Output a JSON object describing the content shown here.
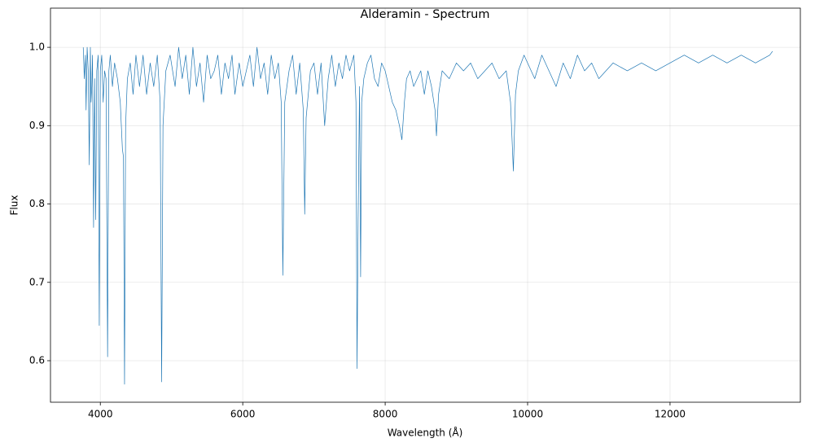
{
  "chart_data": {
    "type": "line",
    "title": "Alderamin - Spectrum",
    "x_label": "Wavelength (Å)",
    "y_label": "Flux",
    "xlim": [
      3300,
      13830
    ],
    "ylim": [
      0.547,
      1.05
    ],
    "xticks": [
      4000,
      6000,
      8000,
      10000,
      12000
    ],
    "yticks": [
      0.6,
      0.7,
      0.8,
      0.9,
      {
        "value": 1.0,
        "label": "1.0"
      }
    ],
    "grid": true,
    "series": [
      {
        "name": "Spectrum",
        "color": "#1f77b4",
        "x": [
          3760,
          3775,
          3790,
          3800,
          3815,
          3830,
          3845,
          3860,
          3870,
          3880,
          3890,
          3905,
          3920,
          3935,
          3950,
          3970,
          3985,
          4000,
          4020,
          4040,
          4060,
          4080,
          4102,
          4120,
          4140,
          4170,
          4200,
          4240,
          4280,
          4310,
          4325,
          4340,
          4355,
          4380,
          4420,
          4460,
          4500,
          4550,
          4600,
          4650,
          4700,
          4750,
          4800,
          4840,
          4861,
          4880,
          4920,
          4980,
          5050,
          5100,
          5150,
          5200,
          5250,
          5300,
          5350,
          5400,
          5450,
          5500,
          5550,
          5600,
          5650,
          5700,
          5750,
          5800,
          5850,
          5890,
          5950,
          6000,
          6050,
          6100,
          6150,
          6200,
          6250,
          6300,
          6350,
          6400,
          6450,
          6500,
          6540,
          6563,
          6590,
          6650,
          6700,
          6750,
          6800,
          6850,
          6870,
          6890,
          6950,
          7000,
          7050,
          7100,
          7150,
          7200,
          7250,
          7300,
          7350,
          7400,
          7450,
          7500,
          7560,
          7590,
          7605,
          7620,
          7640,
          7655,
          7670,
          7700,
          7750,
          7800,
          7850,
          7900,
          7950,
          8000,
          8050,
          8100,
          8150,
          8200,
          8235,
          8270,
          8300,
          8350,
          8400,
          8450,
          8500,
          8550,
          8600,
          8650,
          8700,
          8720,
          8750,
          8800,
          8900,
          9000,
          9100,
          9200,
          9300,
          9400,
          9500,
          9600,
          9700,
          9760,
          9800,
          9830,
          9870,
          9950,
          10000,
          10100,
          10200,
          10300,
          10400,
          10500,
          10600,
          10700,
          10800,
          10900,
          11000,
          11200,
          11400,
          11600,
          11800,
          12000,
          12200,
          12400,
          12600,
          12800,
          13000,
          13200,
          13400,
          13440
        ],
        "values": [
          1.0,
          0.96,
          0.99,
          0.92,
          1.0,
          0.97,
          0.85,
          1.0,
          0.93,
          0.95,
          0.99,
          0.77,
          0.96,
          0.78,
          0.97,
          0.99,
          0.645,
          0.97,
          0.99,
          0.93,
          0.97,
          0.96,
          0.605,
          0.97,
          0.99,
          0.95,
          0.98,
          0.96,
          0.93,
          0.87,
          0.86,
          0.57,
          0.9,
          0.96,
          0.98,
          0.94,
          0.99,
          0.95,
          0.99,
          0.94,
          0.98,
          0.95,
          0.99,
          0.93,
          0.573,
          0.9,
          0.97,
          0.99,
          0.95,
          1.0,
          0.96,
          0.99,
          0.94,
          1.0,
          0.95,
          0.98,
          0.93,
          0.99,
          0.96,
          0.97,
          0.99,
          0.94,
          0.98,
          0.96,
          0.99,
          0.94,
          0.98,
          0.95,
          0.97,
          0.99,
          0.95,
          1.0,
          0.96,
          0.98,
          0.94,
          0.99,
          0.96,
          0.98,
          0.93,
          0.709,
          0.93,
          0.97,
          0.99,
          0.94,
          0.98,
          0.92,
          0.787,
          0.91,
          0.97,
          0.98,
          0.94,
          0.98,
          0.9,
          0.96,
          0.99,
          0.95,
          0.98,
          0.96,
          0.99,
          0.97,
          0.99,
          0.93,
          0.59,
          0.78,
          0.95,
          0.707,
          0.93,
          0.96,
          0.98,
          0.99,
          0.96,
          0.95,
          0.98,
          0.97,
          0.95,
          0.93,
          0.92,
          0.9,
          0.882,
          0.93,
          0.96,
          0.97,
          0.95,
          0.96,
          0.97,
          0.94,
          0.97,
          0.95,
          0.92,
          0.887,
          0.94,
          0.97,
          0.96,
          0.98,
          0.97,
          0.98,
          0.96,
          0.97,
          0.98,
          0.96,
          0.97,
          0.93,
          0.842,
          0.94,
          0.97,
          0.99,
          0.98,
          0.96,
          0.99,
          0.97,
          0.95,
          0.98,
          0.96,
          0.99,
          0.97,
          0.98,
          0.96,
          0.98,
          0.97,
          0.98,
          0.97,
          0.98,
          0.99,
          0.98,
          0.99,
          0.98,
          0.99,
          0.98,
          0.99,
          0.995
        ]
      }
    ]
  }
}
